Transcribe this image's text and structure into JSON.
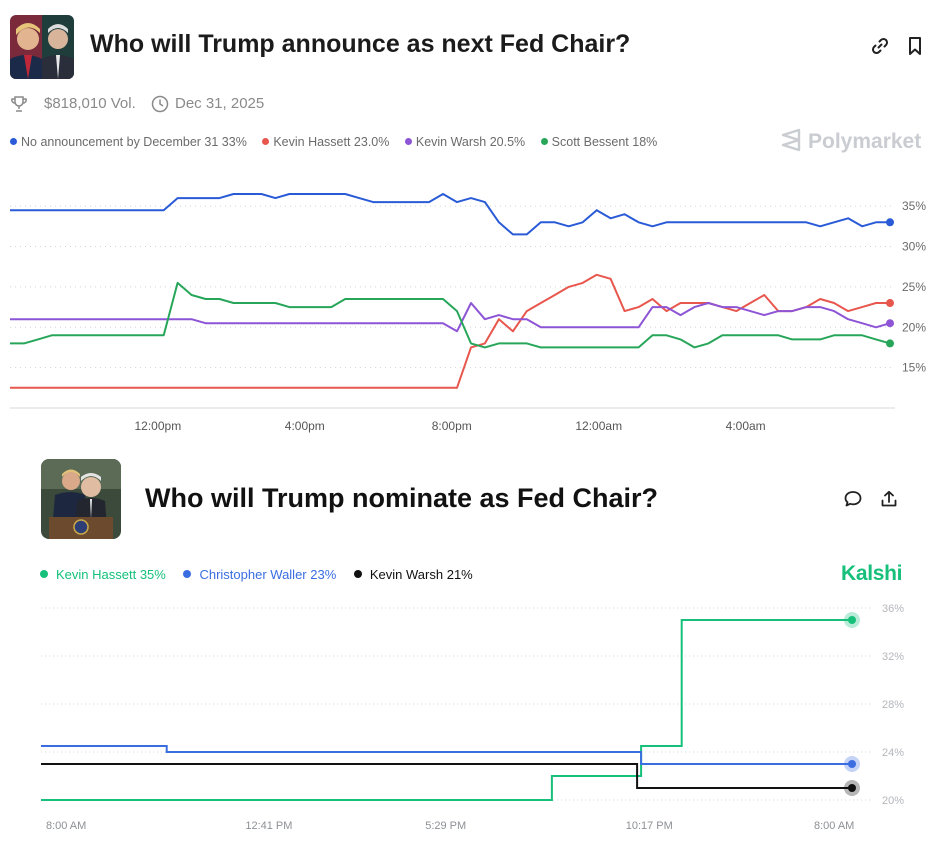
{
  "polymarket": {
    "title": "Who will Trump announce as next Fed Chair?",
    "volume": "$818,010 Vol.",
    "end_date": "Dec 31, 2025",
    "brand": "Polymarket",
    "legend": [
      {
        "label": "No announcement by December 31 33%",
        "color": "#2a5bd7"
      },
      {
        "label": "Kevin Hassett 23.0%",
        "color": "#e8574e"
      },
      {
        "label": "Kevin Warsh 20.5%",
        "color": "#8e54d6"
      },
      {
        "label": "Scott Bessent 18%",
        "color": "#27a65a"
      }
    ],
    "icons": [
      "trophy-icon",
      "clock-icon",
      "link-icon",
      "bookmark-icon"
    ]
  },
  "kalshi": {
    "title": "Who will Trump nominate as Fed Chair?",
    "brand": "Kalshi",
    "legend": [
      {
        "label": "Kevin Hassett 35%",
        "color": "#16c07a"
      },
      {
        "label": "Christopher Waller 23%",
        "color": "#3a6ee0"
      },
      {
        "label": "Kevin Warsh 21%",
        "color": "#111111"
      }
    ],
    "icons": [
      "comment-icon",
      "share-icon"
    ]
  },
  "chart_data": [
    {
      "type": "line",
      "x_tick_labels": [
        "12:00pm",
        "4:00pm",
        "8:00pm",
        "12:00am",
        "4:00am"
      ],
      "y_tick_labels": [
        "15%",
        "20%",
        "25%",
        "30%",
        "35%"
      ],
      "ylim": [
        10,
        37
      ],
      "grid": true,
      "legend_position": "top-left",
      "series": [
        {
          "name": "No announcement by December 31",
          "color": "#2a5bd7",
          "values": [
            34.5,
            34.5,
            34.5,
            34.5,
            34.5,
            34.5,
            34.5,
            34.5,
            34.5,
            34.5,
            34.5,
            34.5,
            36,
            36,
            36,
            36,
            36.5,
            36.5,
            36.5,
            36,
            36.5,
            36.5,
            36.5,
            36.5,
            36.5,
            36,
            35.5,
            35.5,
            35.5,
            35.5,
            35.5,
            36.5,
            35.5,
            36,
            35.5,
            33,
            31.5,
            31.5,
            33,
            33,
            32.5,
            33,
            34.5,
            33.5,
            34,
            33,
            32.5,
            33,
            33,
            33,
            33,
            33,
            33,
            33,
            33,
            33,
            33,
            33,
            32.5,
            33,
            33.5,
            32.5,
            33,
            33
          ]
        },
        {
          "name": "Kevin Hassett",
          "color": "#e8574e",
          "values": [
            12.5,
            12.5,
            12.5,
            12.5,
            12.5,
            12.5,
            12.5,
            12.5,
            12.5,
            12.5,
            12.5,
            12.5,
            12.5,
            12.5,
            12.5,
            12.5,
            12.5,
            12.5,
            12.5,
            12.5,
            12.5,
            12.5,
            12.5,
            12.5,
            12.5,
            12.5,
            12.5,
            12.5,
            12.5,
            12.5,
            12.5,
            12.5,
            12.5,
            17.5,
            18,
            21,
            19.5,
            22,
            23,
            24,
            25,
            25.5,
            26.5,
            26,
            22,
            22.5,
            23.5,
            22,
            23,
            23,
            23,
            22.5,
            22,
            23,
            24,
            22,
            22,
            22.5,
            23.5,
            23,
            22,
            22.5,
            23,
            23
          ]
        },
        {
          "name": "Kevin Warsh",
          "color": "#8e54d6",
          "values": [
            21,
            21,
            21,
            21,
            21,
            21,
            21,
            21,
            21,
            21,
            21,
            21,
            21,
            21,
            20.5,
            20.5,
            20.5,
            20.5,
            20.5,
            20.5,
            20.5,
            20.5,
            20.5,
            20.5,
            20.5,
            20.5,
            20.5,
            20.5,
            20.5,
            20.5,
            20.5,
            20.5,
            19.5,
            23,
            21,
            21.5,
            21,
            21,
            20,
            20,
            20,
            20,
            20,
            20,
            20,
            20,
            22.5,
            22.5,
            21.5,
            22.5,
            23,
            22.5,
            22.5,
            22,
            21.5,
            22,
            22,
            22.5,
            22.5,
            22,
            21,
            20.5,
            20,
            20.5
          ]
        },
        {
          "name": "Scott Bessent",
          "color": "#27a65a",
          "values": [
            18,
            18,
            18.5,
            19,
            19,
            19,
            19,
            19,
            19,
            19,
            19,
            19,
            25.5,
            24,
            23.5,
            23.5,
            23,
            23,
            23,
            23,
            22.5,
            22.5,
            22.5,
            22.5,
            23.5,
            23.5,
            23.5,
            23.5,
            23.5,
            23.5,
            23.5,
            23.5,
            22,
            18,
            17.5,
            18,
            18,
            18,
            17.5,
            17.5,
            17.5,
            17.5,
            17.5,
            17.5,
            17.5,
            17.5,
            19,
            19,
            18.5,
            17.5,
            18,
            19,
            19,
            19,
            19,
            19,
            18.5,
            18.5,
            18.5,
            19,
            19,
            19,
            18.5,
            18
          ]
        }
      ]
    },
    {
      "type": "line",
      "x_tick_labels": [
        "8:00 AM",
        "12:41 PM",
        "5:29 PM",
        "10:17 PM",
        "8:00 AM"
      ],
      "y_tick_labels": [
        "20%",
        "24%",
        "28%",
        "32%",
        "36%"
      ],
      "ylim": [
        20,
        36
      ],
      "grid": true,
      "legend_position": "top-left",
      "series": [
        {
          "name": "Kevin Hassett",
          "color": "#16c07a",
          "steps": [
            [
              0,
              20
            ],
            [
              0.63,
              20
            ],
            [
              0.63,
              22
            ],
            [
              0.74,
              22
            ],
            [
              0.74,
              24.5
            ],
            [
              0.79,
              24.5
            ],
            [
              0.79,
              35
            ],
            [
              1,
              35
            ]
          ]
        },
        {
          "name": "Christopher Waller",
          "color": "#3a6ee0",
          "steps": [
            [
              0,
              24.5
            ],
            [
              0.155,
              24.5
            ],
            [
              0.155,
              24
            ],
            [
              0.74,
              24
            ],
            [
              0.74,
              23
            ],
            [
              1,
              23
            ]
          ]
        },
        {
          "name": "Kevin Warsh",
          "color": "#111111",
          "steps": [
            [
              0,
              23
            ],
            [
              0.735,
              23
            ],
            [
              0.735,
              21
            ],
            [
              1,
              21
            ]
          ]
        }
      ]
    }
  ]
}
